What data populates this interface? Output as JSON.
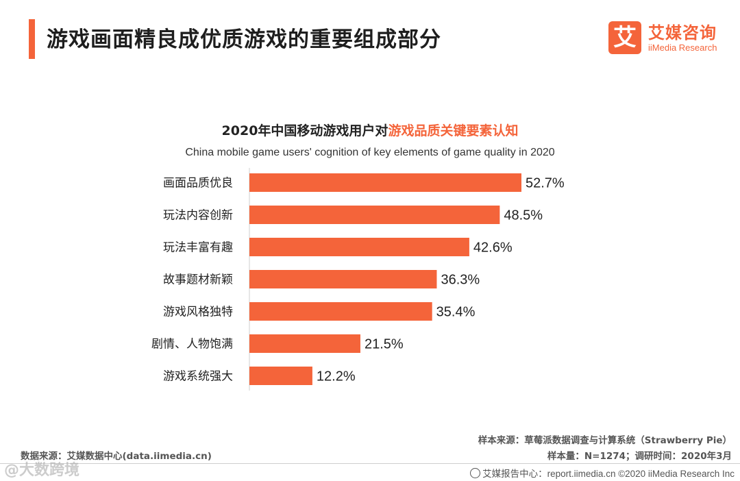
{
  "page": {
    "title": "游戏画面精良成优质游戏的重要组成部分"
  },
  "logo": {
    "mark": "艾",
    "name_cn": "艾媒咨询",
    "name_en": "iiMedia Research"
  },
  "chart_data": {
    "type": "bar",
    "orientation": "horizontal",
    "title_prefix": "2020年中国移动游戏用户对",
    "title_highlight": "游戏品质关键要素认知",
    "subtitle": "China mobile game users' cognition of key elements of game quality in 2020",
    "categories": [
      "画面品质优良",
      "玩法内容创新",
      "玩法丰富有趣",
      "故事题材新颖",
      "游戏风格独特",
      "剧情、人物饱满",
      "游戏系统强大"
    ],
    "values": [
      52.7,
      48.5,
      42.6,
      36.3,
      35.4,
      21.5,
      12.2
    ],
    "value_labels": [
      "52.7%",
      "48.5%",
      "42.6%",
      "36.3%",
      "35.4%",
      "21.5%",
      "12.2%"
    ],
    "unit": "%",
    "xlim": [
      0,
      100
    ],
    "bar_color": "#f4643a",
    "grid": false,
    "legend": "none"
  },
  "sources": {
    "left": "数据来源：艾媒数据中心(data.iimedia.cn)",
    "right_line1": "样本来源：草莓派数据调查与计算系统（Strawberry Pie）",
    "right_line2": "样本量：N=1274；调研时间：2020年3月"
  },
  "footer": {
    "text": "艾媒报告中心：report.iimedia.cn ©2020 iiMedia Research Inc"
  },
  "watermark": "@大数跨境",
  "colors": {
    "accent": "#f4643a"
  }
}
